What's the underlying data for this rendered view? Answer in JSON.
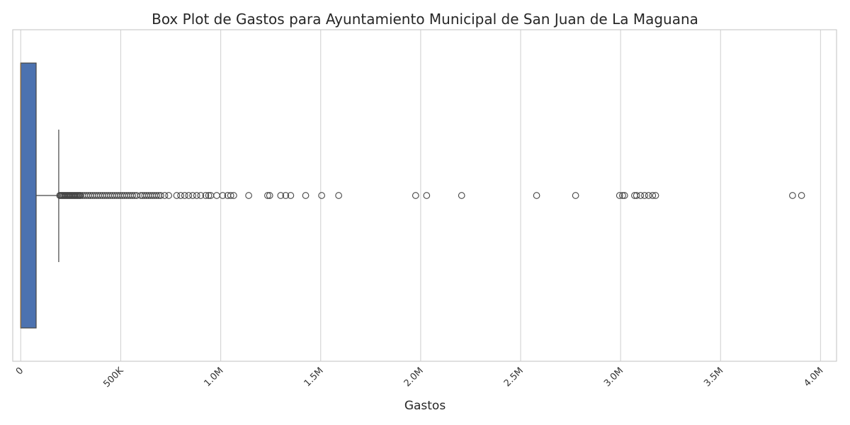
{
  "chart_data": {
    "type": "box",
    "orientation": "horizontal",
    "title": "Box Plot de Gastos para Ayuntamiento Municipal de San Juan de La Maguana",
    "xlabel": "Gastos",
    "ylabel": "",
    "xlim": [
      -40000,
      4080000
    ],
    "xticks": [
      0,
      500000,
      1000000,
      1500000,
      2000000,
      2500000,
      3000000,
      3500000,
      4000000
    ],
    "xtick_labels": [
      "0",
      "500K",
      "1.0M",
      "1.5M",
      "2.0M",
      "2.5M",
      "3.0M",
      "3.5M",
      "4.0M"
    ],
    "grid": "vertical",
    "box": {
      "whisker_low": 0,
      "q1": 0,
      "median": 0,
      "q3": 77000,
      "whisker_high": 190000,
      "color": "#4C72B0"
    },
    "outliers": [
      195000,
      200000,
      205000,
      210000,
      215000,
      220000,
      225000,
      230000,
      235000,
      240000,
      245000,
      250000,
      255000,
      260000,
      265000,
      270000,
      275000,
      280000,
      285000,
      290000,
      295000,
      300000,
      310000,
      320000,
      330000,
      340000,
      350000,
      360000,
      370000,
      380000,
      390000,
      400000,
      410000,
      420000,
      430000,
      440000,
      450000,
      460000,
      470000,
      480000,
      490000,
      500000,
      510000,
      520000,
      530000,
      540000,
      550000,
      560000,
      570000,
      580000,
      600000,
      610000,
      620000,
      630000,
      640000,
      650000,
      660000,
      670000,
      680000,
      690000,
      700000,
      720000,
      740000,
      780000,
      800000,
      820000,
      840000,
      860000,
      880000,
      900000,
      925000,
      940000,
      950000,
      980000,
      1010000,
      1035000,
      1050000,
      1065000,
      1140000,
      1235000,
      1245000,
      1300000,
      1325000,
      1350000,
      1425000,
      1505000,
      1590000,
      1975000,
      2030000,
      2205000,
      2580000,
      2775000,
      2995000,
      3010000,
      3020000,
      3070000,
      3080000,
      3100000,
      3120000,
      3140000,
      3160000,
      3175000,
      3860000,
      3905000
    ]
  }
}
